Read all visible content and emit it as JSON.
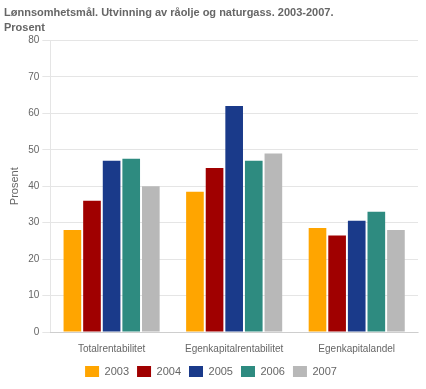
{
  "chart_data": {
    "type": "bar",
    "title": "Lønnsomhetsmål. Utvinning av råolje og naturgass. 2003-2007.",
    "subtitle": "Prosent",
    "ylabel": "Prosent",
    "categories": [
      "Totalrentabilitet",
      "Egenkapitalrentabilitet",
      "Egenkapitalandel"
    ],
    "series": [
      {
        "name": "2003",
        "color": "#FFA500",
        "values": [
          28,
          38.5,
          28.5
        ]
      },
      {
        "name": "2004",
        "color": "#A00000",
        "values": [
          36,
          45,
          26.5
        ]
      },
      {
        "name": "2005",
        "color": "#1A3A8A",
        "values": [
          47,
          62,
          30.5
        ]
      },
      {
        "name": "2006",
        "color": "#2E8B80",
        "values": [
          47.5,
          47,
          33
        ]
      },
      {
        "name": "2007",
        "color": "#B8B8B8",
        "values": [
          40,
          49,
          28
        ]
      }
    ],
    "ylim": [
      0,
      80
    ],
    "yticks": [
      0,
      10,
      20,
      30,
      40,
      50,
      60,
      70,
      80
    ],
    "grid": true,
    "legend": "bottom"
  }
}
